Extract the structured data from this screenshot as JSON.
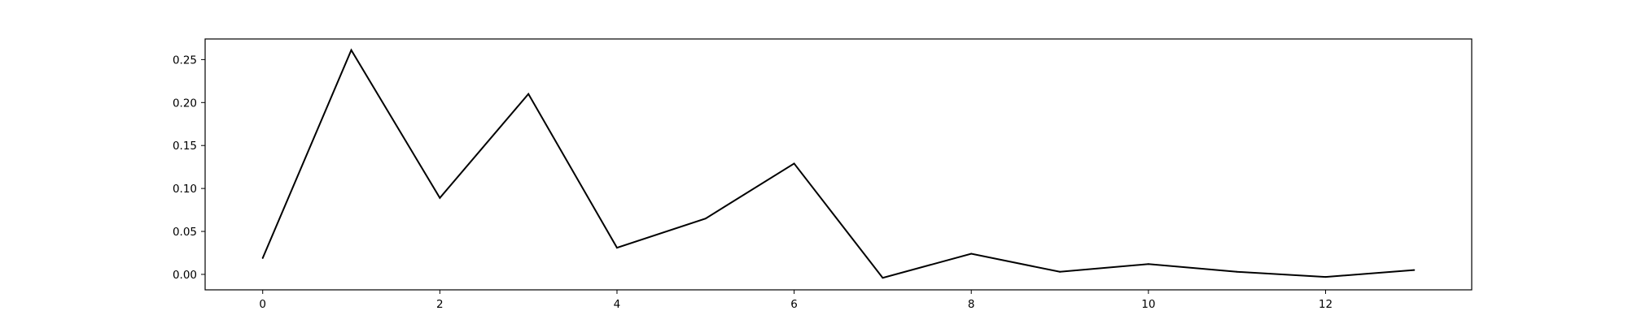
{
  "chart_data": {
    "type": "line",
    "title": "",
    "xlabel": "",
    "ylabel": "",
    "x": [
      0,
      1,
      2,
      3,
      4,
      5,
      6,
      7,
      8,
      9,
      10,
      11,
      12,
      13
    ],
    "series": [
      {
        "values": [
          0.019,
          0.261,
          0.089,
          0.21,
          0.031,
          0.065,
          0.129,
          -0.004,
          0.024,
          0.003,
          0.012,
          0.003,
          -0.003,
          0.005
        ]
      }
    ],
    "xlim": [
      -0.65,
      13.65
    ],
    "ylim": [
      -0.018,
      0.274
    ],
    "xticks": [
      "0",
      "2",
      "4",
      "6",
      "8",
      "10",
      "12"
    ],
    "yticks": [
      "0.00",
      "0.05",
      "0.10",
      "0.15",
      "0.20",
      "0.25"
    ],
    "grid": false,
    "legend": "none",
    "line_color": "#000000"
  }
}
